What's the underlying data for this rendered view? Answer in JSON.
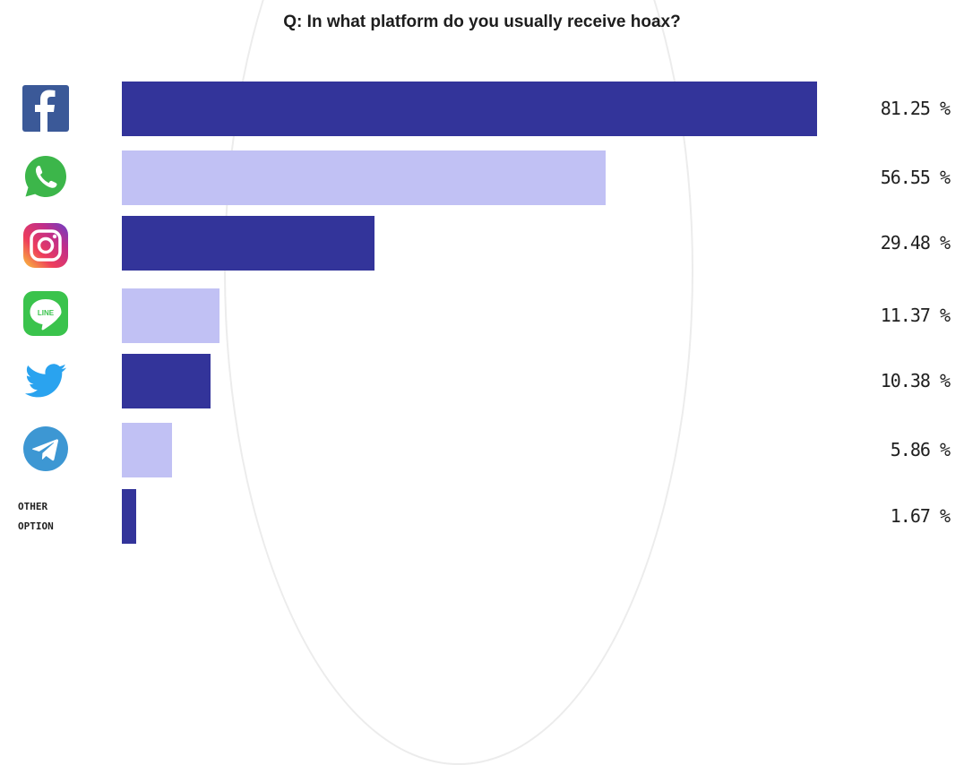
{
  "chart_data": {
    "type": "bar",
    "orientation": "horizontal",
    "title": "Q: In what platform do you usually receive hoax?",
    "categories": [
      "Facebook",
      "WhatsApp",
      "Instagram",
      "Line",
      "Twitter",
      "Telegram",
      "OTHER OPTION"
    ],
    "values": [
      81.25,
      56.55,
      29.48,
      11.37,
      10.38,
      5.86,
      1.67
    ],
    "value_labels": [
      "81.25 %",
      "56.55 %",
      "29.48 %",
      "11.37 %",
      "10.38 %",
      "5.86 %",
      "1.67 %"
    ],
    "bar_colors": [
      "#33349a",
      "#c1c1f4",
      "#33349a",
      "#c1c1f4",
      "#33349a",
      "#c1c1f4",
      "#33349a"
    ],
    "xlim": [
      0,
      81.25
    ],
    "grid": false,
    "legend": "none"
  },
  "icons": [
    "facebook-icon",
    "whatsapp-icon",
    "instagram-icon",
    "line-icon",
    "twitter-icon",
    "telegram-icon"
  ],
  "other_label_line1": "OTHER",
  "other_label_line2": "OPTION"
}
